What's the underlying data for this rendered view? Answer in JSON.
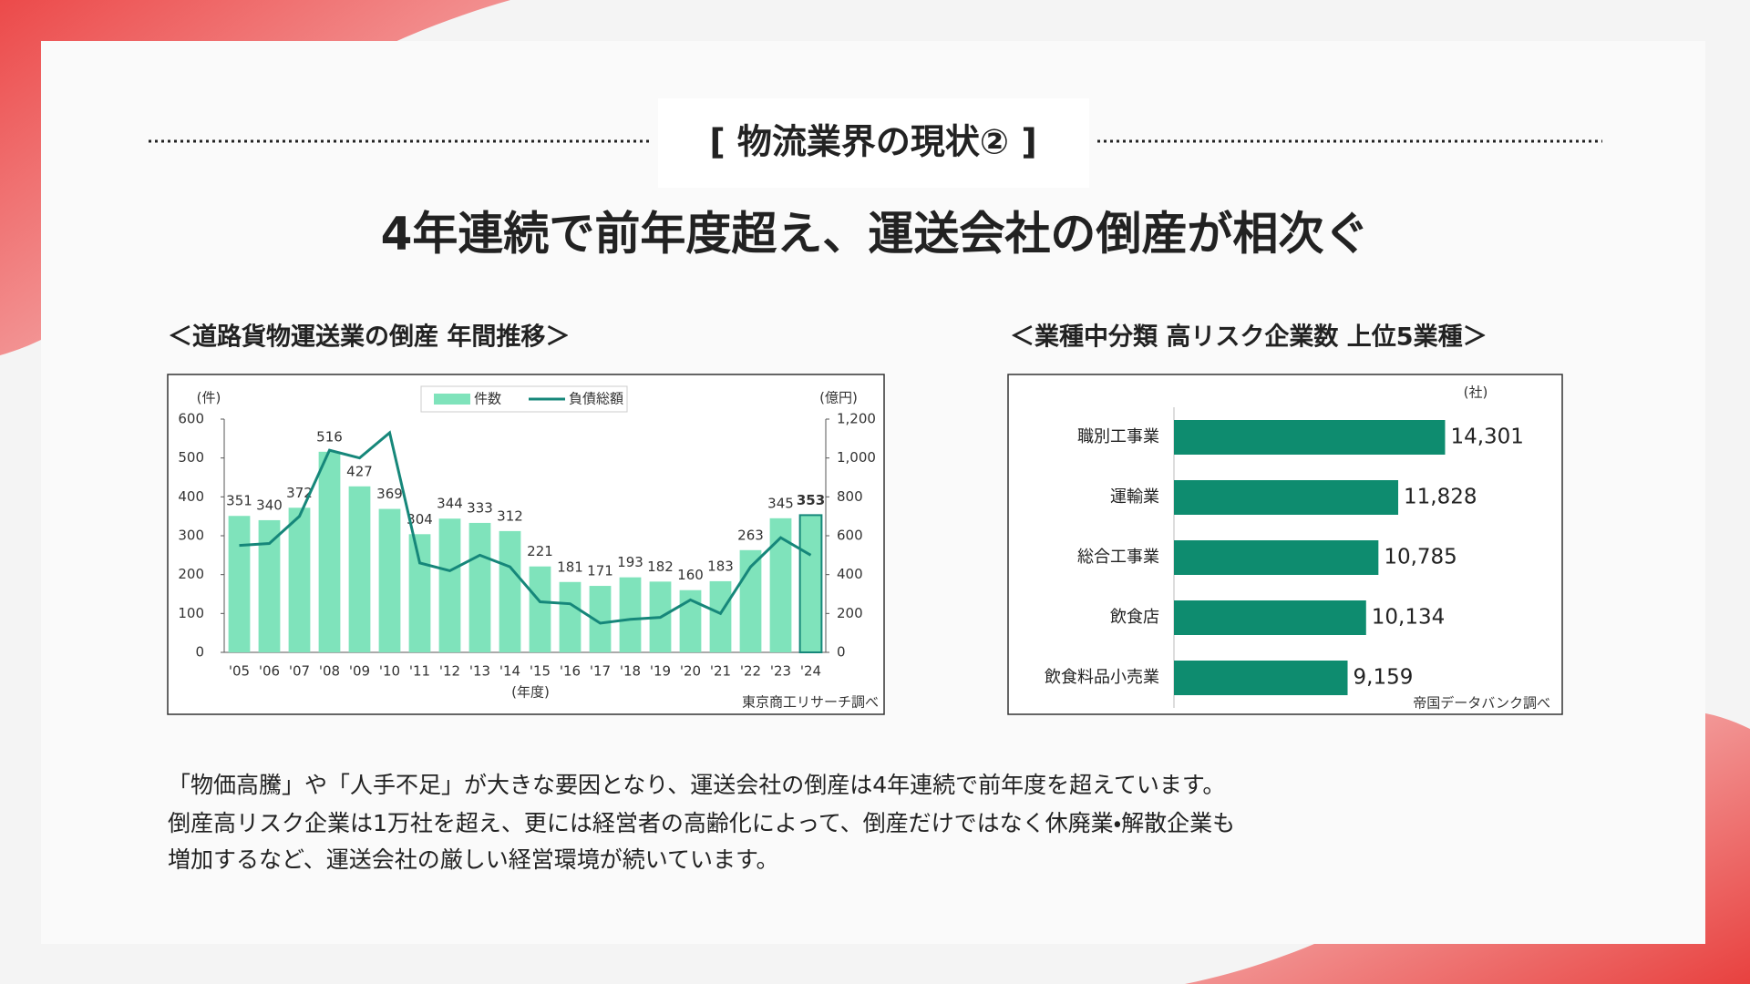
{
  "header": {
    "label": "[ 物流業界の現状② ]",
    "title": "4年連続で前年度超え、運送会社の倒産が相次ぐ"
  },
  "chart_data": [
    {
      "type": "combo",
      "title": "＜道路貨物運送業の倒産 年間推移＞",
      "y_label": "(件)",
      "y2_label": "(億円)",
      "x_label": "(年度)",
      "source": "東京商工リサーチ調べ",
      "categories": [
        "'05",
        "'06",
        "'07",
        "'08",
        "'09",
        "'10",
        "'11",
        "'12",
        "'13",
        "'14",
        "'15",
        "'16",
        "'17",
        "'18",
        "'19",
        "'20",
        "'21",
        "'22",
        "'23",
        "'24"
      ],
      "series": [
        {
          "name": "件数",
          "color": "#7fe3bb",
          "values": [
            351,
            340,
            372,
            516,
            427,
            369,
            304,
            344,
            333,
            312,
            221,
            181,
            171,
            193,
            182,
            160,
            183,
            263,
            345,
            353
          ]
        },
        {
          "name": "負債総額",
          "color": "#16877a",
          "axis": "y2",
          "values": [
            550,
            560,
            700,
            1040,
            1000,
            1130,
            460,
            420,
            500,
            440,
            260,
            250,
            150,
            170,
            180,
            270,
            200,
            440,
            590,
            500
          ]
        }
      ],
      "ylim": [
        0,
        600
      ],
      "yticks": [
        0,
        100,
        200,
        300,
        400,
        500,
        600
      ],
      "y2lim": [
        0,
        1200
      ],
      "y2ticks": [
        0,
        200,
        400,
        600,
        800,
        {
          "value": 1000,
          "label": "1,000"
        },
        {
          "value": 1200,
          "label": "1,200"
        }
      ],
      "grid": false
    },
    {
      "type": "barh",
      "title": "＜業種中分類 高リスク企業数 上位5業種＞",
      "unit": "(社)",
      "source": "帝国データバンク調べ",
      "categories": [
        "職別工事業",
        "運輸業",
        "総合工事業",
        "飲食店",
        "飲食料品小売業"
      ],
      "values": [
        14301,
        11828,
        10785,
        10134,
        9159
      ],
      "value_labels": [
        "14,301",
        "11,828",
        "10,785",
        "10,134",
        "9,159"
      ],
      "color": "#0e8c6f",
      "xlim": [
        0,
        20000
      ]
    }
  ],
  "body": {
    "lines": [
      "「物価高騰」や「人手不足」が大きな要因となり、運送会社の倒産は4年連続で前年度を超えています。",
      "倒産高リスク企業は1万社を超え、更には経営者の高齢化によって、倒産だけではなく休廃業・解散企業も",
      "増加するなど、運送会社の厳しい経営環境が続いています。"
    ]
  }
}
